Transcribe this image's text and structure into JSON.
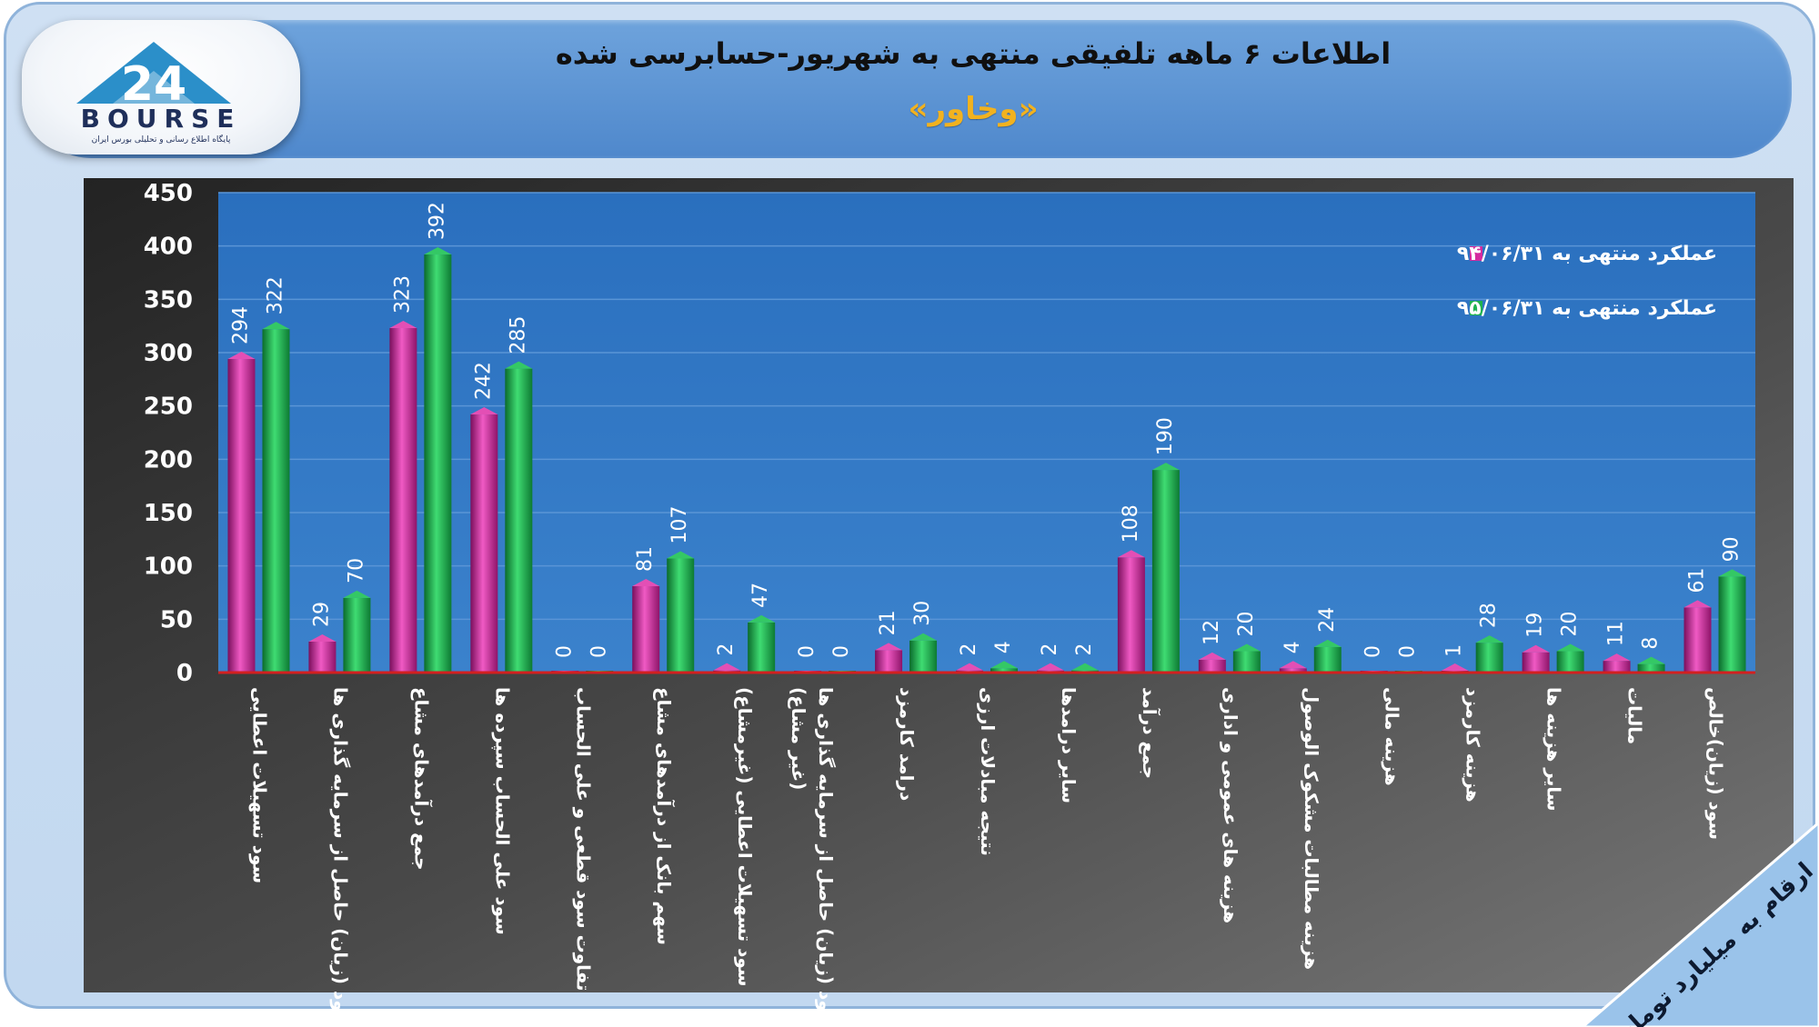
{
  "header": {
    "title": "اطلاعات ۶ ماهه تلفیقی منتهی به شهریور-حسابرسی شده",
    "subtitle": "«وخاور»",
    "logo_text": "BOURSE",
    "logo_number": "24",
    "logo_caption": "پایگاه اطلاع رسانی و تحلیلی بورس ایران"
  },
  "corner_note": "ارقام به میلیارد تومان",
  "colors": {
    "series_1": "#d42a9e",
    "series_2": "#1eb24f",
    "plot_bg": "#2f73c0",
    "outer_bg": "#2d2d2d"
  },
  "chart_data": {
    "type": "bar",
    "ylim": [
      0,
      450
    ],
    "yticks": [
      0,
      50,
      100,
      150,
      200,
      250,
      300,
      350,
      400,
      450
    ],
    "grid": true,
    "legend_position": "top-right",
    "categories": [
      [
        "سود تسهیلات اعطایی"
      ],
      [
        "سود (زیان) حاصل از سرمایه گذاری ها"
      ],
      [
        "جمع درآمدهای مشاع"
      ],
      [
        "سود علی الحساب سپرده ها"
      ],
      [
        "تفاوت سود قطعی و علی الحساب"
      ],
      [
        "سهم بانک از درآمدهای مشاع"
      ],
      [
        "سود تسهیلات اعطایی (غیرمشاع)"
      ],
      [
        "سود (زیان) حاصل از سرمایه گذاری ها",
        "(غیر مشاع)"
      ],
      [
        "درامد کارمزد"
      ],
      [
        "نتیجه مبادلات ارزی"
      ],
      [
        "سایر درامدها"
      ],
      [
        "جمع درآمد"
      ],
      [
        "هزینه های عمومی و اداری"
      ],
      [
        "هزینه مطالبات مشکوک الوصول"
      ],
      [
        "هزینه مالی"
      ],
      [
        "هزینه کارمزد"
      ],
      [
        "سایر هزینه ها"
      ],
      [
        "مالیات"
      ],
      [
        "سود (زیان)خالص"
      ]
    ],
    "series": [
      {
        "name": "عملکرد منتهی به ۹۴/۰۶/۳۱",
        "values": [
          294,
          29,
          323,
          242,
          0,
          81,
          2,
          0,
          21,
          2,
          2,
          108,
          12,
          4,
          0,
          1,
          19,
          11,
          61
        ]
      },
      {
        "name": "عملکرد منتهی به ۹۵/۰۶/۳۱",
        "values": [
          322,
          70,
          392,
          285,
          0,
          107,
          47,
          0,
          30,
          4,
          2,
          190,
          20,
          24,
          0,
          28,
          20,
          8,
          90
        ]
      }
    ]
  }
}
